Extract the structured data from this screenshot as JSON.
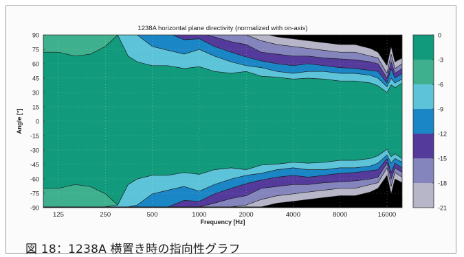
{
  "caption": "図 18：1238A 横置き時の指向性グラフ",
  "chart_data": {
    "type": "heatmap",
    "title": "1238A horizontal plane directivity (normalized with on-axis)",
    "xlabel": "Frequency [Hz]",
    "ylabel": "Angle [°]",
    "x_scale": "log",
    "xlim": [
      100,
      20000
    ],
    "ylim": [
      -90,
      90
    ],
    "x_ticks": [
      {
        "value": 125,
        "label": "125"
      },
      {
        "value": 250,
        "label": "250"
      },
      {
        "value": 500,
        "label": "500"
      },
      {
        "value": 1000,
        "label": "1000"
      },
      {
        "value": 2000,
        "label": "2000"
      },
      {
        "value": 4000,
        "label": "4000"
      },
      {
        "value": 8000,
        "label": "8000"
      },
      {
        "value": 16000,
        "label": "16000"
      }
    ],
    "y_ticks": [
      90,
      75,
      60,
      45,
      30,
      15,
      0,
      -15,
      -30,
      -45,
      -60,
      -75,
      -90
    ],
    "colorbar": {
      "levels_db": [
        0,
        -3,
        -6,
        -9,
        -12,
        -15,
        -18,
        -21
      ],
      "labels": [
        "0",
        "-3",
        "-6",
        "-9",
        "-12",
        "-15",
        "-18",
        "-21"
      ],
      "colors": [
        "#129a7c",
        "#3fb08e",
        "#5cc3d9",
        "#1b86c6",
        "#533a9b",
        "#8585bd",
        "#b6b6c8"
      ]
    },
    "grid": true,
    "frequencies": [
      100,
      125,
      160,
      200,
      250,
      300,
      350,
      400,
      500,
      630,
      800,
      1000,
      1250,
      1600,
      2000,
      2500,
      3150,
      4000,
      5000,
      6300,
      8000,
      10000,
      12500,
      14000,
      16000,
      17000,
      18000,
      20000
    ],
    "contours": [
      {
        "level_db": -3,
        "angle": [
          72,
          72,
          68,
          70,
          78,
          90,
          90,
          90,
          90,
          90,
          90,
          90,
          90,
          90,
          90,
          90,
          90,
          90,
          90,
          90,
          90,
          90,
          90,
          90,
          90,
          90,
          90,
          90
        ]
      },
      {
        "level_db": -6,
        "angle": [
          92,
          92,
          92,
          92,
          92,
          90,
          68,
          62,
          58,
          58,
          55,
          57,
          52,
          50,
          52,
          47,
          46,
          44,
          45,
          44,
          42,
          42,
          40,
          37,
          30,
          38,
          35,
          40
        ]
      },
      {
        "level_db": -9,
        "angle": [
          92,
          92,
          92,
          92,
          92,
          92,
          92,
          90,
          78,
          74,
          70,
          75,
          68,
          62,
          58,
          56,
          52,
          50,
          52,
          52,
          50,
          50,
          48,
          45,
          36,
          45,
          40,
          44
        ]
      },
      {
        "level_db": -12,
        "angle": [
          92,
          92,
          92,
          92,
          92,
          92,
          92,
          92,
          92,
          92,
          85,
          86,
          78,
          72,
          67,
          63,
          60,
          58,
          60,
          58,
          56,
          55,
          53,
          52,
          40,
          55,
          45,
          50
        ]
      },
      {
        "level_db": -15,
        "angle": [
          92,
          92,
          92,
          92,
          92,
          92,
          92,
          92,
          92,
          92,
          92,
          92,
          88,
          83,
          80,
          72,
          70,
          68,
          68,
          66,
          65,
          64,
          62,
          60,
          45,
          62,
          50,
          55
        ]
      },
      {
        "level_db": -18,
        "angle": [
          92,
          92,
          92,
          92,
          92,
          92,
          92,
          92,
          92,
          92,
          92,
          92,
          92,
          92,
          90,
          84,
          80,
          78,
          76,
          74,
          72,
          72,
          68,
          66,
          50,
          70,
          55,
          60
        ]
      },
      {
        "level_db": -21,
        "angle": [
          92,
          92,
          92,
          92,
          92,
          92,
          92,
          92,
          92,
          92,
          92,
          92,
          92,
          92,
          92,
          92,
          88,
          86,
          84,
          82,
          80,
          80,
          76,
          72,
          58,
          78,
          62,
          66
        ]
      }
    ]
  }
}
